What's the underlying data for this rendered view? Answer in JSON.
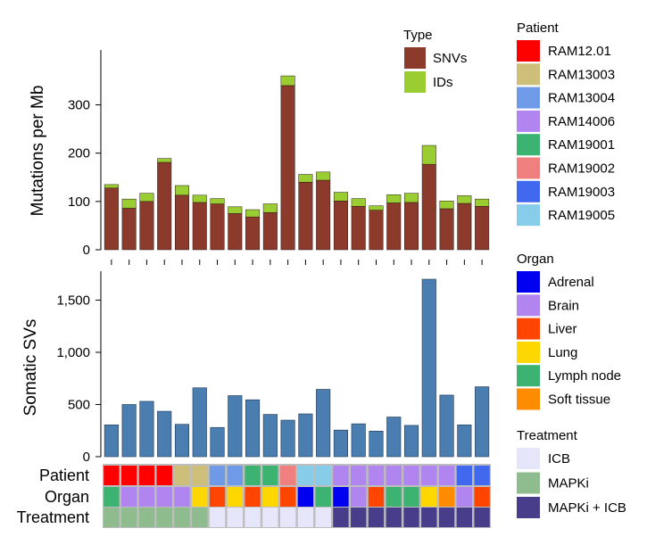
{
  "chart_data": [
    {
      "type": "bar",
      "stacked": true,
      "title": "",
      "xlabel": "",
      "ylabel": "Mutations per Mb",
      "ylim": [
        0,
        410
      ],
      "yticks": [
        0,
        100,
        200,
        300
      ],
      "legend_title": "Type",
      "series": [
        {
          "name": "SNVs",
          "color": "#8b3a2b",
          "values": [
            128,
            86,
            100,
            181,
            113,
            98,
            95,
            75,
            68,
            77,
            340,
            140,
            144,
            101,
            90,
            82,
            97,
            98,
            177,
            85,
            96,
            90
          ]
        },
        {
          "name": "IDs",
          "color": "#9acd32",
          "values": [
            7,
            19,
            17,
            8,
            20,
            15,
            11,
            14,
            15,
            18,
            20,
            16,
            17,
            18,
            16,
            9,
            17,
            19,
            39,
            16,
            16,
            15
          ]
        }
      ]
    },
    {
      "type": "bar",
      "title": "",
      "xlabel": "",
      "ylabel": "Somatic SVs",
      "ylim": [
        0,
        1760
      ],
      "yticks": [
        0,
        500,
        1000,
        1500
      ],
      "ytick_labels": [
        "0",
        "500",
        "1,000",
        "1,500"
      ],
      "color": "#4a7db0",
      "values": [
        305,
        500,
        530,
        435,
        310,
        660,
        280,
        585,
        545,
        405,
        350,
        410,
        645,
        255,
        315,
        245,
        380,
        300,
        1700,
        590,
        305,
        670
      ]
    },
    {
      "type": "heatmap",
      "rows": [
        {
          "label": "Patient",
          "cells": [
            "RAM12.01",
            "RAM12.01",
            "RAM12.01",
            "RAM12.01",
            "RAM13003",
            "RAM13003",
            "RAM13004",
            "RAM13004",
            "RAM19001",
            "RAM19001",
            "RAM19002",
            "RAM19005",
            "RAM19005",
            "RAM14006",
            "RAM14006",
            "RAM14006",
            "RAM14006",
            "RAM14006",
            "RAM14006",
            "RAM14006",
            "RAM19003",
            "RAM19003"
          ]
        },
        {
          "label": "Organ",
          "cells": [
            "Lymph node",
            "Brain",
            "Brain",
            "Brain",
            "Brain",
            "Lung",
            "Liver",
            "Lung",
            "Liver",
            "Lung",
            "Liver",
            "Adrenal",
            "Lymph node",
            "Adrenal",
            "Brain",
            "Liver",
            "Lymph node",
            "Lymph node",
            "Lung",
            "Soft tissue",
            "Brain",
            "Liver"
          ]
        },
        {
          "label": "Treatment",
          "cells": [
            "MAPKi",
            "MAPKi",
            "MAPKi",
            "MAPKi",
            "MAPKi",
            "MAPKi",
            "ICB",
            "ICB",
            "ICB",
            "ICB",
            "ICB",
            "ICB",
            "ICB",
            "MAPKi + ICB",
            "MAPKi + ICB",
            "MAPKi + ICB",
            "MAPKi + ICB",
            "MAPKi + ICB",
            "MAPKi + ICB",
            "MAPKi + ICB",
            "MAPKi + ICB",
            "MAPKi + ICB"
          ]
        }
      ]
    }
  ],
  "legends": {
    "patient": {
      "title": "Patient",
      "items": [
        {
          "label": "RAM12.01",
          "color": "#ff0000"
        },
        {
          "label": "RAM13003",
          "color": "#cdbf7a"
        },
        {
          "label": "RAM13004",
          "color": "#6e9ae8"
        },
        {
          "label": "RAM14006",
          "color": "#b085f0"
        },
        {
          "label": "RAM19001",
          "color": "#3cb371"
        },
        {
          "label": "RAM19002",
          "color": "#f08080"
        },
        {
          "label": "RAM19003",
          "color": "#4169f0"
        },
        {
          "label": "RAM19005",
          "color": "#87cdea"
        }
      ]
    },
    "organ": {
      "title": "Organ",
      "items": [
        {
          "label": "Adrenal",
          "color": "#0000f0"
        },
        {
          "label": "Brain",
          "color": "#b085f0"
        },
        {
          "label": "Liver",
          "color": "#ff4500"
        },
        {
          "label": "Lung",
          "color": "#ffd700"
        },
        {
          "label": "Lymph node",
          "color": "#3cb371"
        },
        {
          "label": "Soft tissue",
          "color": "#ff8c00"
        }
      ]
    },
    "treatment": {
      "title": "Treatment",
      "items": [
        {
          "label": "ICB",
          "color": "#e6e6fa"
        },
        {
          "label": "MAPKi",
          "color": "#8fbc8f"
        },
        {
          "label": "MAPKi + ICB",
          "color": "#483d8b"
        }
      ]
    }
  }
}
